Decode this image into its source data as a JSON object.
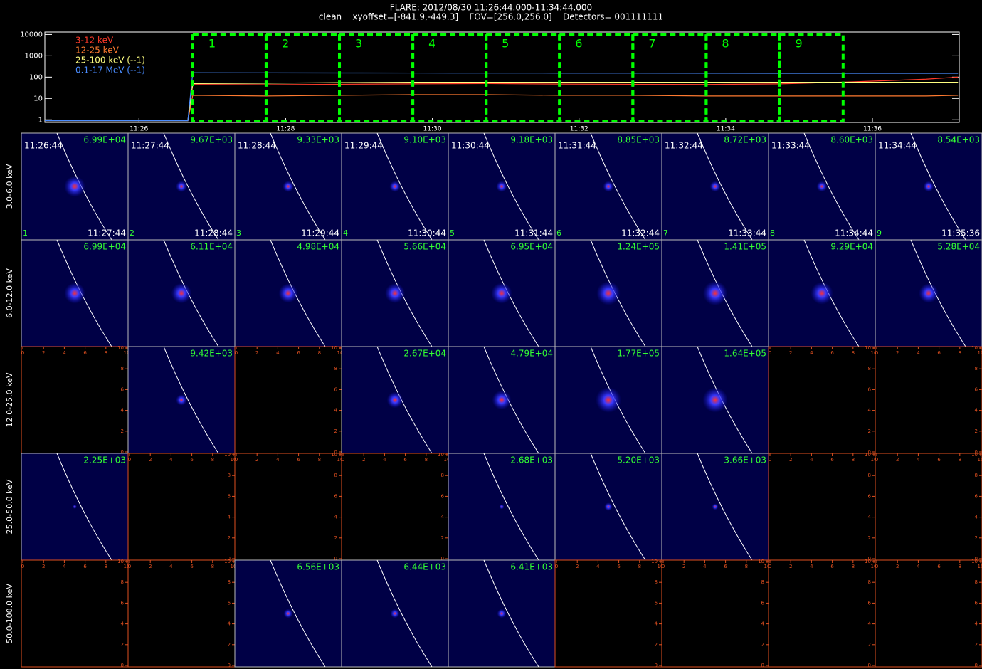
{
  "header": {
    "title": "FLARE: 2012/08/30 11:26:44.000-11:34:44.000",
    "subtitle": "clean    xyoffset=[-841.9,-449.3]    FOV=[256.0,256.0]    Detectors= 001111111"
  },
  "chart_data": {
    "type": "line",
    "ylog": true,
    "ylim": [
      0.75,
      13000
    ],
    "yticks": [
      1,
      10,
      100,
      1000,
      10000
    ],
    "xlim": [
      "11:24:43",
      "11:37:11"
    ],
    "xticks": [
      "11:26",
      "11:28",
      "11:30",
      "11:32",
      "11:34",
      "11:36"
    ],
    "legend": "upper left",
    "x": [
      "11:24:43",
      "11:26:40",
      "11:26:44",
      "11:27:44",
      "11:28:44",
      "11:29:44",
      "11:30:44",
      "11:31:44",
      "11:32:44",
      "11:33:44",
      "11:34:44",
      "11:35:44",
      "11:36:44",
      "11:37:10"
    ],
    "series": [
      {
        "name": "3-12 keV",
        "color": "#ff3a2a",
        "values": [
          0.9,
          0.9,
          45,
          44,
          46,
          48,
          50,
          47,
          46,
          45,
          48,
          60,
          80,
          100
        ]
      },
      {
        "name": "12-25 keV",
        "color": "#ff7a30",
        "values": [
          0.9,
          0.9,
          14,
          13,
          14,
          15,
          15,
          14,
          14,
          13,
          13,
          13,
          13,
          14
        ]
      },
      {
        "name": "25-100 keV (--1)",
        "color": "#ffff80",
        "values": [
          0.9,
          0.9,
          50,
          52,
          55,
          57,
          57,
          57,
          57,
          57,
          57,
          57,
          57,
          57
        ]
      },
      {
        "name": "0.1-17 MeV (--1)",
        "color": "#4a8cff",
        "values": [
          0.9,
          0.9,
          160,
          158,
          157,
          156,
          155,
          154,
          153,
          152,
          151,
          150,
          150,
          150
        ]
      }
    ],
    "intervals": [
      {
        "label": "1",
        "start": "11:26:44",
        "end": "11:27:44"
      },
      {
        "label": "2",
        "start": "11:27:44",
        "end": "11:28:44"
      },
      {
        "label": "3",
        "start": "11:28:44",
        "end": "11:29:44"
      },
      {
        "label": "4",
        "start": "11:29:44",
        "end": "11:30:44"
      },
      {
        "label": "5",
        "start": "11:30:44",
        "end": "11:31:44"
      },
      {
        "label": "6",
        "start": "11:31:44",
        "end": "11:32:44"
      },
      {
        "label": "7",
        "start": "11:32:44",
        "end": "11:33:44"
      },
      {
        "label": "8",
        "start": "11:33:44",
        "end": "11:34:44"
      },
      {
        "label": "9",
        "start": "11:34:44",
        "end": "11:35:36"
      }
    ]
  },
  "image_grid": {
    "empty_ticks": [
      0,
      2,
      4,
      6,
      8,
      10
    ],
    "empty_lim": [
      0,
      10
    ],
    "rows": [
      {
        "label": "3.0-6.0 keV",
        "values": [
          69900,
          9670,
          9330,
          9100,
          9180,
          8850,
          8720,
          8600,
          8540
        ],
        "value_labels": [
          "6.99E+04",
          "9.67E+03",
          "9.33E+03",
          "9.10E+03",
          "9.18E+03",
          "8.85E+03",
          "8.72E+03",
          "8.60E+03",
          "8.54E+03"
        ]
      },
      {
        "label": "6.0-12.0 keV",
        "values": [
          69900,
          61100,
          49800,
          56600,
          69500,
          124000,
          141000,
          92900,
          52800
        ],
        "value_labels": [
          "6.99E+04",
          "6.11E+04",
          "4.98E+04",
          "5.66E+04",
          "6.95E+04",
          "1.24E+05",
          "1.41E+05",
          "9.29E+04",
          "5.28E+04"
        ]
      },
      {
        "label": "12.0-25.0 keV",
        "values": [
          null,
          9420,
          null,
          26700,
          47900,
          177000,
          164000,
          null,
          null
        ],
        "value_labels": [
          null,
          "9.42E+03",
          null,
          "2.67E+04",
          "4.79E+04",
          "1.77E+05",
          "1.64E+05",
          null,
          null
        ]
      },
      {
        "label": "25.0-50.0 keV",
        "values": [
          2250,
          null,
          null,
          null,
          2680,
          5200,
          3660,
          null,
          null
        ],
        "value_labels": [
          "2.25E+03",
          null,
          null,
          null,
          "2.68E+03",
          "5.20E+03",
          "3.66E+03",
          null,
          null
        ]
      },
      {
        "label": "50.0-100.0 keV",
        "values": [
          null,
          null,
          6560,
          6440,
          6410,
          null,
          null,
          null,
          null
        ],
        "value_labels": [
          null,
          null,
          "6.56E+03",
          "6.44E+03",
          "6.41E+03",
          null,
          null,
          null,
          null
        ]
      }
    ]
  }
}
